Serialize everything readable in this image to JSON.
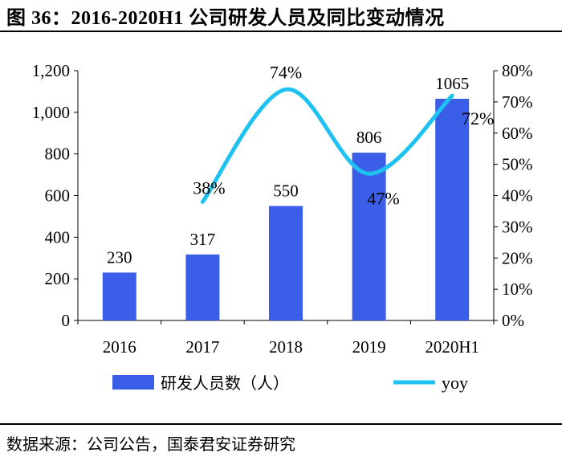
{
  "figure": {
    "title": "图 36：2016-2020H1 公司研发人员及同比变动情况",
    "source": "数据来源：公司公告，国泰君安证券研究"
  },
  "chart_data": {
    "type": "bar+line",
    "title": "2016-2020H1 公司研发人员及同比变动情况",
    "categories": [
      "2016",
      "2017",
      "2018",
      "2019",
      "2020H1"
    ],
    "series": [
      {
        "name": "研发人员数（人）",
        "type": "bar",
        "axis": "left",
        "values": [
          230,
          317,
          550,
          806,
          1065
        ],
        "labels": [
          "230",
          "317",
          "550",
          "806",
          "1065"
        ],
        "color": "#3B5EE8"
      },
      {
        "name": "yoy",
        "type": "line",
        "axis": "right",
        "values": [
          null,
          0.38,
          0.74,
          0.47,
          0.72
        ],
        "labels": [
          "",
          "38%",
          "74%",
          "47%",
          "72%"
        ],
        "color": "#1EC2F0"
      }
    ],
    "y_left": {
      "min": 0,
      "max": 1200,
      "ticks": [
        "0",
        "200",
        "400",
        "600",
        "800",
        "1,000",
        "1,200"
      ]
    },
    "y_right": {
      "min": 0,
      "max": 0.8,
      "ticks": [
        "0%",
        "10%",
        "20%",
        "30%",
        "40%",
        "50%",
        "60%",
        "70%",
        "80%"
      ]
    },
    "legend": {
      "position": "bottom",
      "entries": [
        "研发人员数（人）",
        "yoy"
      ]
    },
    "grid": false
  }
}
